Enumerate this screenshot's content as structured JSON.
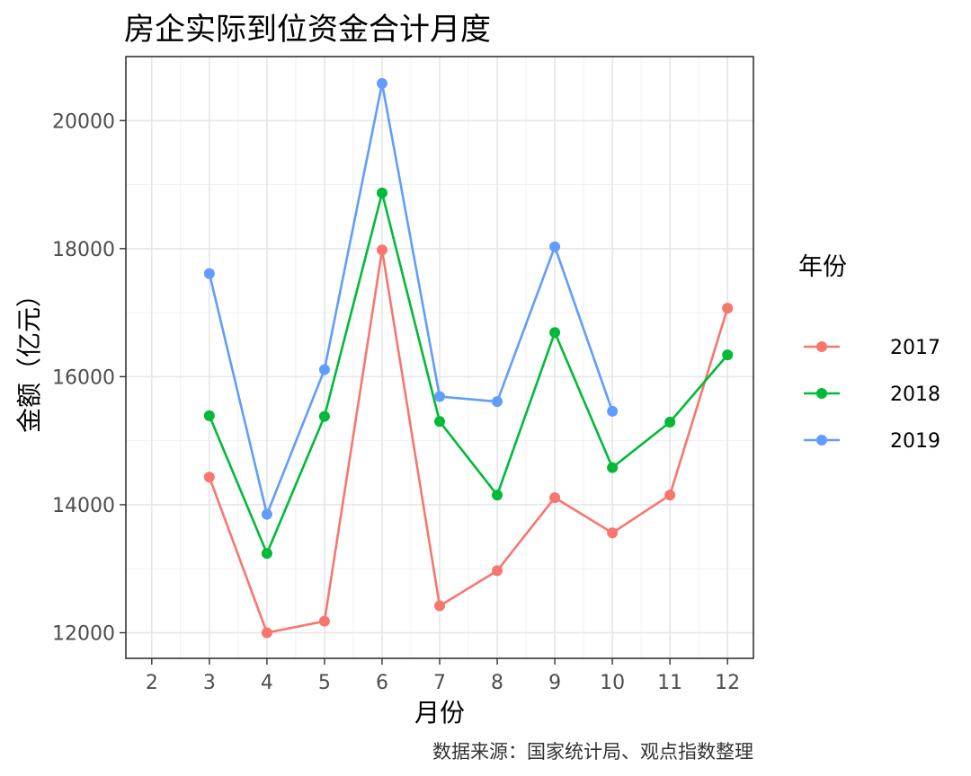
{
  "chart_data": {
    "type": "line",
    "title": "房企实际到位资金合计月度",
    "xlabel": "月份",
    "ylabel": "金额（亿元）",
    "caption": "数据来源：国家统计局、观点指数整理",
    "legend_title": "年份",
    "legend_position": "right",
    "grid": true,
    "xlim": [
      1.55,
      12.45
    ],
    "ylim": [
      11600,
      21000
    ],
    "x_ticks": [
      2,
      3,
      4,
      5,
      6,
      7,
      8,
      9,
      10,
      11,
      12
    ],
    "x_tick_labels": [
      "2",
      "3",
      "4",
      "5",
      "6",
      "7",
      "8",
      "9",
      "10",
      "11",
      "12"
    ],
    "y_ticks": [
      12000,
      14000,
      16000,
      18000,
      20000
    ],
    "y_tick_labels": [
      "12000",
      "14000",
      "16000",
      "18000",
      "20000"
    ],
    "series": [
      {
        "name": "2017",
        "color": "#F8766D",
        "x": [
          3,
          4,
          5,
          6,
          7,
          8,
          9,
          10,
          11,
          12
        ],
        "y": [
          14430,
          12000,
          12180,
          17980,
          12420,
          12970,
          14110,
          13560,
          14150,
          17070
        ]
      },
      {
        "name": "2018",
        "color": "#00BA38",
        "x": [
          3,
          4,
          5,
          6,
          7,
          8,
          9,
          10,
          11,
          12
        ],
        "y": [
          15390,
          13240,
          15380,
          18870,
          15300,
          14150,
          16690,
          14580,
          15290,
          16340
        ]
      },
      {
        "name": "2019",
        "color": "#619CFF",
        "x": [
          3,
          4,
          5,
          6,
          7,
          8,
          9,
          10
        ],
        "y": [
          17610,
          13850,
          16110,
          20580,
          15690,
          15610,
          18030,
          15460
        ]
      }
    ]
  }
}
